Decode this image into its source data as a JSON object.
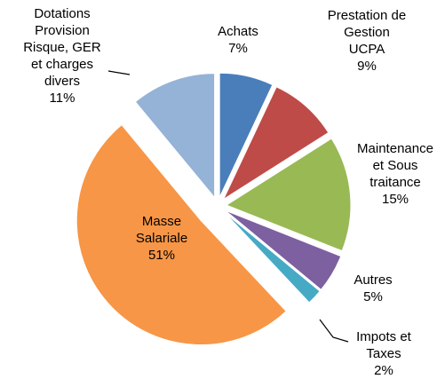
{
  "chart_data": {
    "type": "pie",
    "categories": [
      "Achats",
      "Prestation de\nGestion\nUCPA",
      "Maintenance\net Sous\ntraitance",
      "Autres",
      "Impots et\nTaxes",
      "Masse\nSalariale",
      "Dotations\nProvision\nRisque, GER\net charges\ndivers"
    ],
    "values": [
      7,
      9,
      15,
      5,
      2,
      51,
      11
    ],
    "value_labels": [
      "7%",
      "9%",
      "15%",
      "5%",
      "2%",
      "51%",
      "11%"
    ],
    "colors": [
      "#4a7ebb",
      "#be4b48",
      "#98b954",
      "#7d60a0",
      "#46aac5",
      "#f79646",
      "#95b3d7"
    ]
  }
}
